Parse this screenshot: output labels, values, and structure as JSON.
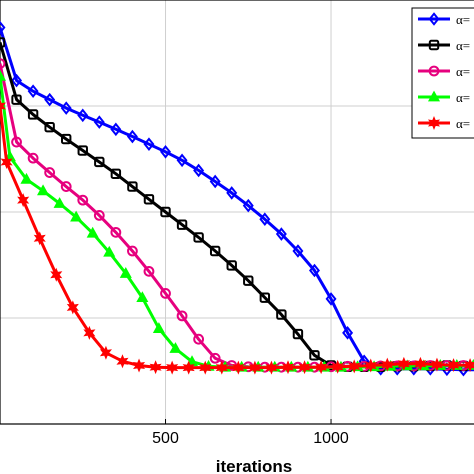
{
  "chart_data": {
    "type": "line",
    "title": "",
    "xlabel": "iterations",
    "ylabel": "",
    "xlim": [
      0,
      1450
    ],
    "ylim": [
      0,
      1
    ],
    "x_ticks": [
      500,
      1000
    ],
    "x_tick_labels": [
      "500",
      "1000"
    ],
    "grid": true,
    "legend_position": "top-right",
    "series": [
      {
        "name": "α=",
        "color": "#0000ff",
        "marker": "diamond",
        "points": [
          [
            0,
            0.935
          ],
          [
            50,
            0.81
          ],
          [
            100,
            0.785
          ],
          [
            150,
            0.765
          ],
          [
            200,
            0.745
          ],
          [
            250,
            0.728
          ],
          [
            300,
            0.712
          ],
          [
            350,
            0.695
          ],
          [
            400,
            0.678
          ],
          [
            450,
            0.66
          ],
          [
            500,
            0.642
          ],
          [
            550,
            0.622
          ],
          [
            600,
            0.598
          ],
          [
            650,
            0.572
          ],
          [
            700,
            0.545
          ],
          [
            750,
            0.515
          ],
          [
            800,
            0.483
          ],
          [
            850,
            0.448
          ],
          [
            900,
            0.408
          ],
          [
            950,
            0.362
          ],
          [
            1000,
            0.295
          ],
          [
            1050,
            0.215
          ],
          [
            1100,
            0.148
          ],
          [
            1150,
            0.13
          ],
          [
            1200,
            0.13
          ],
          [
            1250,
            0.13
          ],
          [
            1300,
            0.13
          ],
          [
            1350,
            0.129
          ],
          [
            1400,
            0.128
          ],
          [
            1450,
            0.128
          ]
        ]
      },
      {
        "name": "α=",
        "color": "#000000",
        "marker": "square",
        "points": [
          [
            0,
            0.9
          ],
          [
            50,
            0.765
          ],
          [
            100,
            0.73
          ],
          [
            150,
            0.7
          ],
          [
            200,
            0.672
          ],
          [
            250,
            0.645
          ],
          [
            300,
            0.618
          ],
          [
            350,
            0.59
          ],
          [
            400,
            0.56
          ],
          [
            450,
            0.53
          ],
          [
            500,
            0.5
          ],
          [
            550,
            0.47
          ],
          [
            600,
            0.44
          ],
          [
            650,
            0.408
          ],
          [
            700,
            0.374
          ],
          [
            750,
            0.338
          ],
          [
            800,
            0.298
          ],
          [
            850,
            0.258
          ],
          [
            900,
            0.212
          ],
          [
            950,
            0.162
          ],
          [
            1000,
            0.138
          ],
          [
            1050,
            0.135
          ],
          [
            1100,
            0.135
          ],
          [
            1150,
            0.135
          ],
          [
            1200,
            0.136
          ],
          [
            1250,
            0.136
          ],
          [
            1300,
            0.137
          ],
          [
            1350,
            0.138
          ],
          [
            1400,
            0.137
          ],
          [
            1450,
            0.137
          ]
        ]
      },
      {
        "name": "α=",
        "color": "#e6007e",
        "marker": "circle",
        "points": [
          [
            0,
            0.85
          ],
          [
            50,
            0.665
          ],
          [
            100,
            0.627
          ],
          [
            150,
            0.593
          ],
          [
            200,
            0.56
          ],
          [
            250,
            0.528
          ],
          [
            300,
            0.492
          ],
          [
            350,
            0.452
          ],
          [
            400,
            0.408
          ],
          [
            450,
            0.36
          ],
          [
            500,
            0.308
          ],
          [
            550,
            0.255
          ],
          [
            600,
            0.2
          ],
          [
            650,
            0.155
          ],
          [
            700,
            0.138
          ],
          [
            750,
            0.135
          ],
          [
            800,
            0.134
          ],
          [
            850,
            0.134
          ],
          [
            900,
            0.134
          ],
          [
            950,
            0.134
          ],
          [
            1000,
            0.135
          ],
          [
            1050,
            0.136
          ],
          [
            1100,
            0.136
          ],
          [
            1150,
            0.137
          ],
          [
            1200,
            0.137
          ],
          [
            1250,
            0.137
          ],
          [
            1300,
            0.138
          ],
          [
            1350,
            0.138
          ],
          [
            1400,
            0.138
          ],
          [
            1450,
            0.138
          ]
        ]
      },
      {
        "name": "α=",
        "color": "#00ff00",
        "marker": "triangle",
        "points": [
          [
            0,
            0.82
          ],
          [
            30,
            0.63
          ],
          [
            80,
            0.577
          ],
          [
            130,
            0.55
          ],
          [
            180,
            0.52
          ],
          [
            230,
            0.488
          ],
          [
            280,
            0.45
          ],
          [
            330,
            0.405
          ],
          [
            380,
            0.355
          ],
          [
            430,
            0.298
          ],
          [
            480,
            0.225
          ],
          [
            530,
            0.178
          ],
          [
            580,
            0.147
          ],
          [
            630,
            0.136
          ],
          [
            680,
            0.134
          ],
          [
            730,
            0.134
          ],
          [
            780,
            0.134
          ],
          [
            830,
            0.134
          ],
          [
            880,
            0.134
          ],
          [
            930,
            0.134
          ],
          [
            980,
            0.134
          ],
          [
            1030,
            0.134
          ],
          [
            1080,
            0.135
          ],
          [
            1130,
            0.135
          ],
          [
            1180,
            0.136
          ],
          [
            1230,
            0.137
          ],
          [
            1280,
            0.137
          ],
          [
            1330,
            0.138
          ],
          [
            1380,
            0.138
          ],
          [
            1430,
            0.138
          ]
        ]
      },
      {
        "name": "α=",
        "color": "#ff0000",
        "marker": "hexagram",
        "points": [
          [
            0,
            0.75
          ],
          [
            20,
            0.618
          ],
          [
            70,
            0.528
          ],
          [
            120,
            0.438
          ],
          [
            170,
            0.352
          ],
          [
            220,
            0.275
          ],
          [
            270,
            0.215
          ],
          [
            320,
            0.168
          ],
          [
            370,
            0.148
          ],
          [
            420,
            0.138
          ],
          [
            470,
            0.134
          ],
          [
            520,
            0.133
          ],
          [
            570,
            0.133
          ],
          [
            620,
            0.133
          ],
          [
            670,
            0.133
          ],
          [
            720,
            0.133
          ],
          [
            770,
            0.133
          ],
          [
            820,
            0.133
          ],
          [
            870,
            0.134
          ],
          [
            920,
            0.134
          ],
          [
            970,
            0.134
          ],
          [
            1020,
            0.135
          ],
          [
            1070,
            0.136
          ],
          [
            1120,
            0.138
          ],
          [
            1170,
            0.14
          ],
          [
            1220,
            0.142
          ],
          [
            1270,
            0.142
          ],
          [
            1320,
            0.14
          ],
          [
            1370,
            0.139
          ],
          [
            1420,
            0.139
          ]
        ]
      }
    ]
  }
}
